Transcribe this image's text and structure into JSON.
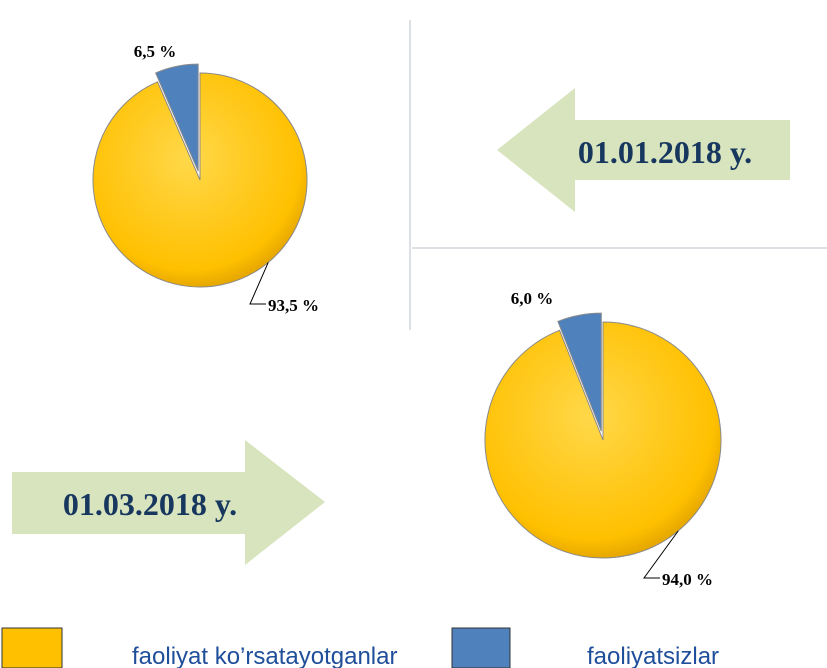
{
  "chart_data": [
    {
      "type": "pie",
      "annotation": "01.01.2018 y.",
      "values": [
        93.5,
        6.5
      ],
      "value_labels": [
        "93,5 %",
        "6,5 %"
      ]
    },
    {
      "type": "pie",
      "annotation": "01.03.2018 y.",
      "values": [
        94.0,
        6.0
      ],
      "value_labels": [
        "94,0 %",
        "6,0 %"
      ]
    }
  ],
  "legend": {
    "categories": [
      "faoliyat ko’rsatayotganlar",
      "faoliyatsizlar"
    ],
    "colors": [
      "#ffc000",
      "#4f81bd"
    ]
  }
}
